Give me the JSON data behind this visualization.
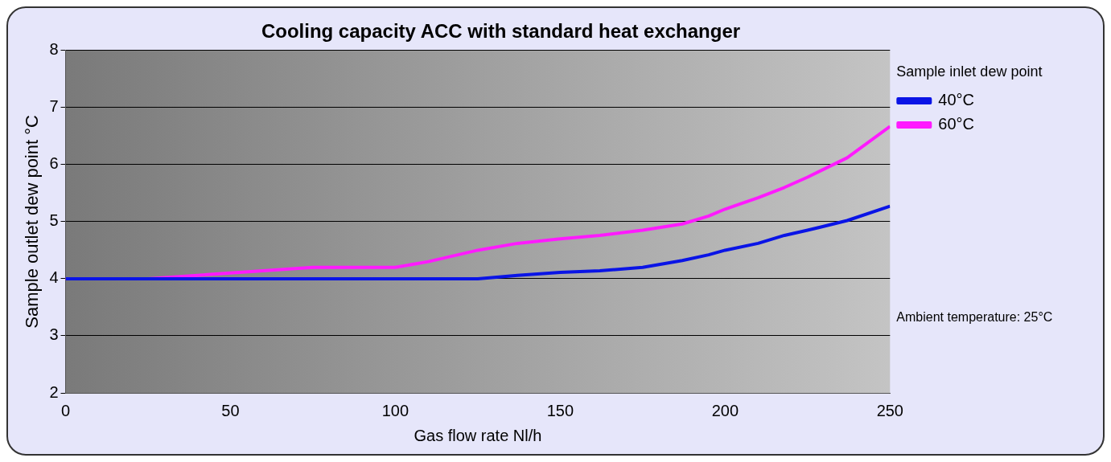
{
  "chart_data": {
    "type": "line",
    "title": "Cooling capacity ACC with standard heat exchanger",
    "xlabel": "Gas flow rate Nl/h",
    "ylabel": "Sample outlet dew point °C",
    "legend_title": "Sample inlet dew point",
    "legend": "right",
    "grid": "y",
    "marker": "none",
    "line_style": "solid",
    "x": [
      0,
      25,
      50,
      75,
      100,
      110,
      125,
      137,
      150,
      162,
      175,
      187,
      195,
      200,
      210,
      218,
      225,
      237,
      250
    ],
    "series": [
      {
        "name": "40°C",
        "color": "#0a14e6",
        "values": [
          4,
          4,
          4,
          4,
          4,
          4,
          4,
          4.06,
          4.11,
          4.14,
          4.2,
          4.32,
          4.42,
          4.5,
          4.62,
          4.76,
          4.85,
          5.02,
          5.27
        ]
      },
      {
        "name": "60°C",
        "color": "#ff1aff",
        "values": [
          4,
          4,
          4.1,
          4.2,
          4.2,
          4.3,
          4.5,
          4.62,
          4.7,
          4.76,
          4.85,
          4.96,
          5.1,
          5.22,
          5.42,
          5.6,
          5.78,
          6.12,
          6.67
        ]
      }
    ],
    "xlim": [
      0,
      250
    ],
    "xticks": [
      0,
      50,
      100,
      150,
      200,
      250
    ],
    "ylim": [
      2,
      8
    ],
    "yticks": [
      2,
      3,
      4,
      5,
      6,
      7,
      8
    ],
    "annotations": [
      "Ambient temperature: 25°C"
    ]
  }
}
